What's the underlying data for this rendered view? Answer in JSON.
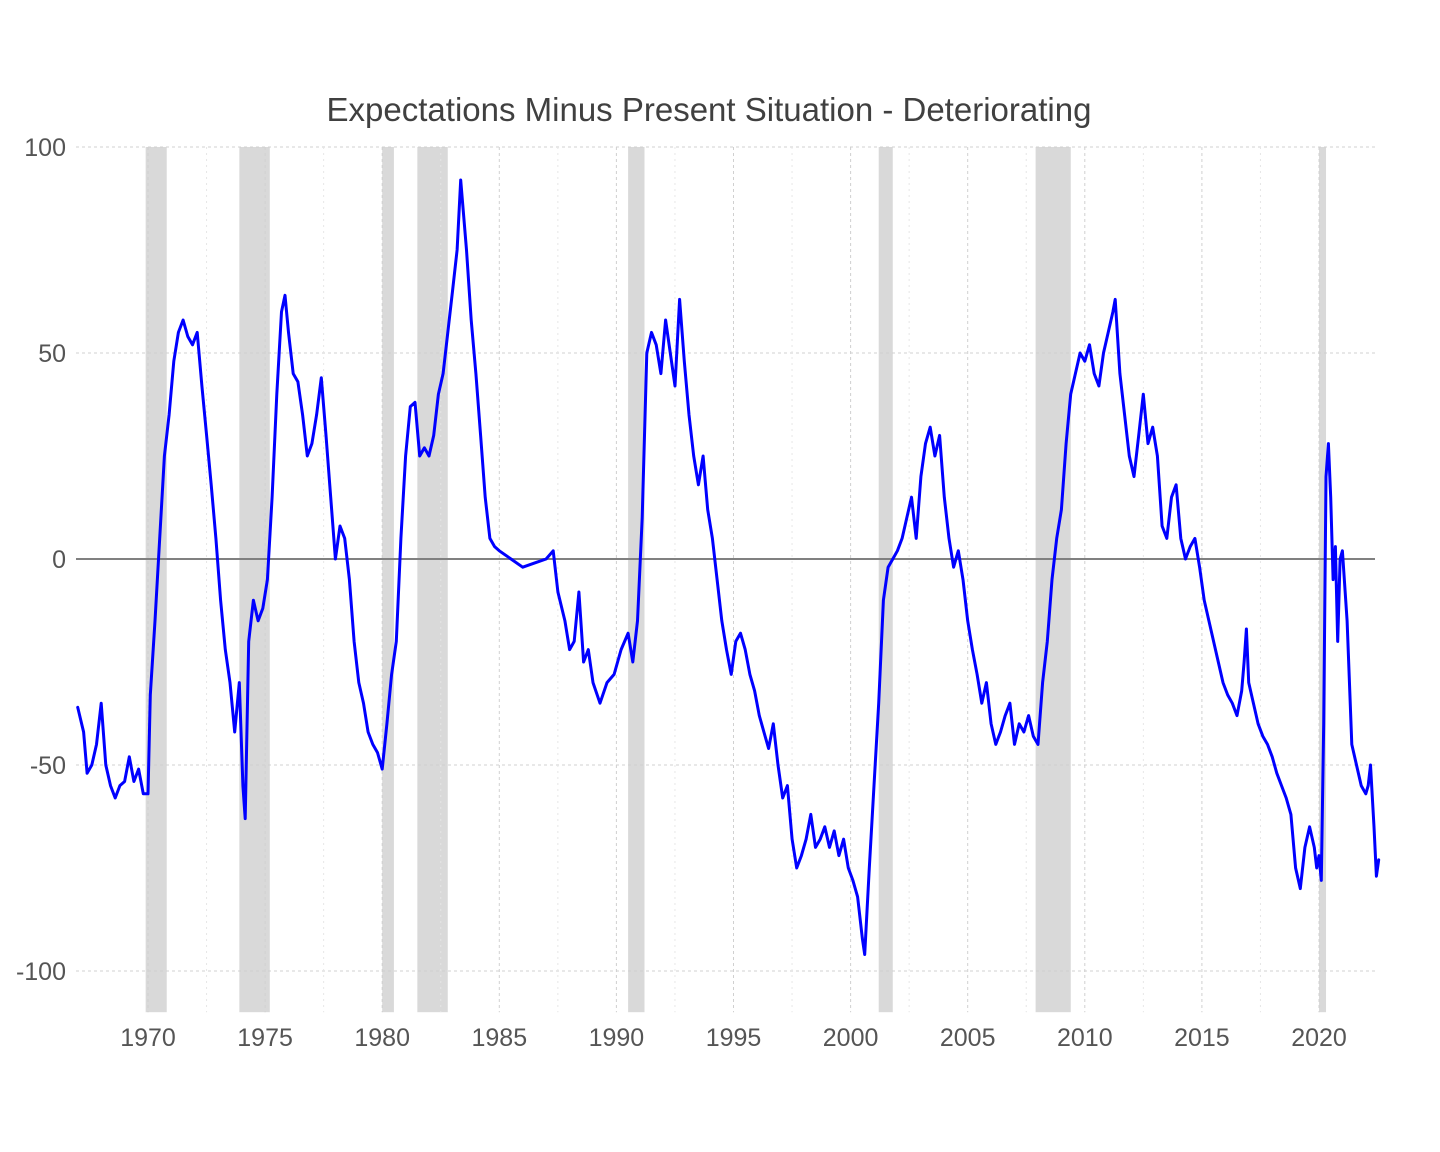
{
  "chart_data": {
    "type": "line",
    "title": "Expectations Minus Present Situation - Deteriorating",
    "xlabel": "",
    "ylabel": "",
    "xlim": [
      1967.0,
      2022.5
    ],
    "ylim": [
      -110,
      100
    ],
    "x_ticks": [
      1970,
      1975,
      1980,
      1985,
      1990,
      1995,
      2000,
      2005,
      2010,
      2015,
      2020
    ],
    "x_tick_labels": [
      "1970",
      "1975",
      "1980",
      "1985",
      "1990",
      "1995",
      "2000",
      "2005",
      "2010",
      "2015",
      "2020"
    ],
    "y_ticks": [
      100,
      50,
      0,
      -50,
      -100
    ],
    "y_tick_labels": [
      "100",
      "50",
      "0",
      "-50",
      "-100"
    ],
    "grid": true,
    "legend": "none",
    "colors": {
      "line": "#0000ff",
      "recession": "#d9d9d9",
      "zero_line": "#808080",
      "grid": "#d0d0d0"
    },
    "recessions": [
      [
        1969.9,
        1970.8
      ],
      [
        1973.9,
        1975.2
      ],
      [
        1980.0,
        1980.5
      ],
      [
        1981.5,
        1982.8
      ],
      [
        1990.5,
        1991.2
      ],
      [
        2001.2,
        2001.8
      ],
      [
        2007.9,
        2009.4
      ],
      [
        2020.0,
        2020.3
      ]
    ],
    "series": [
      {
        "values": [
          [
            1967.0,
            -36
          ],
          [
            1967.25,
            -42
          ],
          [
            1967.4,
            -52
          ],
          [
            1967.6,
            -50
          ],
          [
            1967.8,
            -45
          ],
          [
            1968.0,
            -35
          ],
          [
            1968.2,
            -50
          ],
          [
            1968.4,
            -55
          ],
          [
            1968.6,
            -58
          ],
          [
            1968.8,
            -55
          ],
          [
            1969.0,
            -54
          ],
          [
            1969.2,
            -48
          ],
          [
            1969.4,
            -54
          ],
          [
            1969.6,
            -51
          ],
          [
            1969.8,
            -57
          ],
          [
            1970.0,
            -57
          ],
          [
            1970.1,
            -33
          ],
          [
            1970.3,
            -15
          ],
          [
            1970.5,
            5
          ],
          [
            1970.7,
            25
          ],
          [
            1970.9,
            35
          ],
          [
            1971.1,
            48
          ],
          [
            1971.3,
            55
          ],
          [
            1971.5,
            58
          ],
          [
            1971.7,
            54
          ],
          [
            1971.9,
            52
          ],
          [
            1972.1,
            55
          ],
          [
            1972.3,
            42
          ],
          [
            1972.5,
            30
          ],
          [
            1972.7,
            18
          ],
          [
            1972.9,
            5
          ],
          [
            1973.1,
            -10
          ],
          [
            1973.3,
            -22
          ],
          [
            1973.5,
            -30
          ],
          [
            1973.7,
            -42
          ],
          [
            1973.9,
            -30
          ],
          [
            1974.05,
            -55
          ],
          [
            1974.15,
            -63
          ],
          [
            1974.3,
            -20
          ],
          [
            1974.5,
            -10
          ],
          [
            1974.7,
            -15
          ],
          [
            1974.9,
            -12
          ],
          [
            1975.1,
            -5
          ],
          [
            1975.3,
            15
          ],
          [
            1975.5,
            40
          ],
          [
            1975.7,
            60
          ],
          [
            1975.85,
            64
          ],
          [
            1976.0,
            55
          ],
          [
            1976.2,
            45
          ],
          [
            1976.4,
            43
          ],
          [
            1976.6,
            35
          ],
          [
            1976.8,
            25
          ],
          [
            1977.0,
            28
          ],
          [
            1977.2,
            35
          ],
          [
            1977.4,
            44
          ],
          [
            1977.6,
            30
          ],
          [
            1977.8,
            15
          ],
          [
            1978.0,
            0
          ],
          [
            1978.2,
            8
          ],
          [
            1978.4,
            5
          ],
          [
            1978.6,
            -5
          ],
          [
            1978.8,
            -20
          ],
          [
            1979.0,
            -30
          ],
          [
            1979.2,
            -35
          ],
          [
            1979.4,
            -42
          ],
          [
            1979.6,
            -45
          ],
          [
            1979.8,
            -47
          ],
          [
            1980.0,
            -51
          ],
          [
            1980.2,
            -40
          ],
          [
            1980.4,
            -28
          ],
          [
            1980.6,
            -20
          ],
          [
            1980.8,
            5
          ],
          [
            1981.0,
            25
          ],
          [
            1981.2,
            37
          ],
          [
            1981.4,
            38
          ],
          [
            1981.6,
            25
          ],
          [
            1981.8,
            27
          ],
          [
            1982.0,
            25
          ],
          [
            1982.2,
            30
          ],
          [
            1982.4,
            40
          ],
          [
            1982.6,
            45
          ],
          [
            1982.8,
            55
          ],
          [
            1983.0,
            65
          ],
          [
            1983.2,
            75
          ],
          [
            1983.35,
            92
          ],
          [
            1983.6,
            75
          ],
          [
            1983.8,
            58
          ],
          [
            1984.0,
            45
          ],
          [
            1984.2,
            30
          ],
          [
            1984.4,
            15
          ],
          [
            1984.6,
            5
          ],
          [
            1984.8,
            3
          ],
          [
            1985.0,
            2
          ],
          [
            1985.5,
            0
          ],
          [
            1986.0,
            -2
          ],
          [
            1986.5,
            -1
          ],
          [
            1987.0,
            0
          ],
          [
            1987.3,
            2
          ],
          [
            1987.5,
            -8
          ],
          [
            1987.8,
            -15
          ],
          [
            1988.0,
            -22
          ],
          [
            1988.2,
            -20
          ],
          [
            1988.4,
            -8
          ],
          [
            1988.6,
            -25
          ],
          [
            1988.8,
            -22
          ],
          [
            1989.0,
            -30
          ],
          [
            1989.3,
            -35
          ],
          [
            1989.6,
            -30
          ],
          [
            1989.9,
            -28
          ],
          [
            1990.2,
            -22
          ],
          [
            1990.5,
            -18
          ],
          [
            1990.7,
            -25
          ],
          [
            1990.9,
            -15
          ],
          [
            1991.1,
            10
          ],
          [
            1991.3,
            50
          ],
          [
            1991.5,
            55
          ],
          [
            1991.7,
            52
          ],
          [
            1991.9,
            45
          ],
          [
            1992.1,
            58
          ],
          [
            1992.3,
            50
          ],
          [
            1992.5,
            42
          ],
          [
            1992.7,
            63
          ],
          [
            1992.9,
            48
          ],
          [
            1993.1,
            35
          ],
          [
            1993.3,
            25
          ],
          [
            1993.5,
            18
          ],
          [
            1993.7,
            25
          ],
          [
            1993.9,
            12
          ],
          [
            1994.1,
            5
          ],
          [
            1994.3,
            -5
          ],
          [
            1994.5,
            -15
          ],
          [
            1994.7,
            -22
          ],
          [
            1994.9,
            -28
          ],
          [
            1995.1,
            -20
          ],
          [
            1995.3,
            -18
          ],
          [
            1995.5,
            -22
          ],
          [
            1995.7,
            -28
          ],
          [
            1995.9,
            -32
          ],
          [
            1996.1,
            -38
          ],
          [
            1996.3,
            -42
          ],
          [
            1996.5,
            -46
          ],
          [
            1996.7,
            -40
          ],
          [
            1996.9,
            -50
          ],
          [
            1997.1,
            -58
          ],
          [
            1997.3,
            -55
          ],
          [
            1997.5,
            -68
          ],
          [
            1997.7,
            -75
          ],
          [
            1997.9,
            -72
          ],
          [
            1998.1,
            -68
          ],
          [
            1998.3,
            -62
          ],
          [
            1998.5,
            -70
          ],
          [
            1998.7,
            -68
          ],
          [
            1998.9,
            -65
          ],
          [
            1999.1,
            -70
          ],
          [
            1999.3,
            -66
          ],
          [
            1999.5,
            -72
          ],
          [
            1999.7,
            -68
          ],
          [
            1999.9,
            -75
          ],
          [
            2000.1,
            -78
          ],
          [
            2000.3,
            -82
          ],
          [
            2000.5,
            -92
          ],
          [
            2000.6,
            -96
          ],
          [
            2000.8,
            -75
          ],
          [
            2001.0,
            -55
          ],
          [
            2001.2,
            -35
          ],
          [
            2001.4,
            -10
          ],
          [
            2001.6,
            -2
          ],
          [
            2001.8,
            0
          ],
          [
            2002.0,
            2
          ],
          [
            2002.2,
            5
          ],
          [
            2002.4,
            10
          ],
          [
            2002.6,
            15
          ],
          [
            2002.8,
            5
          ],
          [
            2003.0,
            20
          ],
          [
            2003.2,
            28
          ],
          [
            2003.4,
            32
          ],
          [
            2003.6,
            25
          ],
          [
            2003.8,
            30
          ],
          [
            2004.0,
            15
          ],
          [
            2004.2,
            5
          ],
          [
            2004.4,
            -2
          ],
          [
            2004.6,
            2
          ],
          [
            2004.8,
            -5
          ],
          [
            2005.0,
            -15
          ],
          [
            2005.2,
            -22
          ],
          [
            2005.4,
            -28
          ],
          [
            2005.6,
            -35
          ],
          [
            2005.8,
            -30
          ],
          [
            2006.0,
            -40
          ],
          [
            2006.2,
            -45
          ],
          [
            2006.4,
            -42
          ],
          [
            2006.6,
            -38
          ],
          [
            2006.8,
            -35
          ],
          [
            2007.0,
            -45
          ],
          [
            2007.2,
            -40
          ],
          [
            2007.4,
            -42
          ],
          [
            2007.6,
            -38
          ],
          [
            2007.8,
            -43
          ],
          [
            2008.0,
            -45
          ],
          [
            2008.2,
            -30
          ],
          [
            2008.4,
            -20
          ],
          [
            2008.6,
            -5
          ],
          [
            2008.8,
            5
          ],
          [
            2009.0,
            12
          ],
          [
            2009.2,
            28
          ],
          [
            2009.4,
            40
          ],
          [
            2009.6,
            45
          ],
          [
            2009.8,
            50
          ],
          [
            2010.0,
            48
          ],
          [
            2010.2,
            52
          ],
          [
            2010.4,
            45
          ],
          [
            2010.6,
            42
          ],
          [
            2010.8,
            50
          ],
          [
            2011.0,
            55
          ],
          [
            2011.2,
            60
          ],
          [
            2011.3,
            63
          ],
          [
            2011.5,
            45
          ],
          [
            2011.7,
            35
          ],
          [
            2011.9,
            25
          ],
          [
            2012.1,
            20
          ],
          [
            2012.3,
            30
          ],
          [
            2012.5,
            40
          ],
          [
            2012.7,
            28
          ],
          [
            2012.9,
            32
          ],
          [
            2013.1,
            25
          ],
          [
            2013.3,
            8
          ],
          [
            2013.5,
            5
          ],
          [
            2013.7,
            15
          ],
          [
            2013.9,
            18
          ],
          [
            2014.1,
            5
          ],
          [
            2014.3,
            0
          ],
          [
            2014.5,
            3
          ],
          [
            2014.7,
            5
          ],
          [
            2014.9,
            -2
          ],
          [
            2015.1,
            -10
          ],
          [
            2015.3,
            -15
          ],
          [
            2015.5,
            -20
          ],
          [
            2015.7,
            -25
          ],
          [
            2015.9,
            -30
          ],
          [
            2016.1,
            -33
          ],
          [
            2016.3,
            -35
          ],
          [
            2016.5,
            -38
          ],
          [
            2016.7,
            -32
          ],
          [
            2016.8,
            -25
          ],
          [
            2016.9,
            -17
          ],
          [
            2017.0,
            -30
          ],
          [
            2017.2,
            -35
          ],
          [
            2017.4,
            -40
          ],
          [
            2017.6,
            -43
          ],
          [
            2017.8,
            -45
          ],
          [
            2018.0,
            -48
          ],
          [
            2018.2,
            -52
          ],
          [
            2018.4,
            -55
          ],
          [
            2018.6,
            -58
          ],
          [
            2018.8,
            -62
          ],
          [
            2019.0,
            -75
          ],
          [
            2019.2,
            -80
          ],
          [
            2019.4,
            -70
          ],
          [
            2019.6,
            -65
          ],
          [
            2019.8,
            -70
          ],
          [
            2019.9,
            -75
          ],
          [
            2020.0,
            -72
          ],
          [
            2020.1,
            -78
          ],
          [
            2020.2,
            -40
          ],
          [
            2020.3,
            20
          ],
          [
            2020.4,
            28
          ],
          [
            2020.5,
            15
          ],
          [
            2020.6,
            -5
          ],
          [
            2020.7,
            3
          ],
          [
            2020.8,
            -20
          ],
          [
            2020.9,
            0
          ],
          [
            2021.0,
            2
          ],
          [
            2021.2,
            -15
          ],
          [
            2021.4,
            -45
          ],
          [
            2021.6,
            -50
          ],
          [
            2021.8,
            -55
          ],
          [
            2022.0,
            -57
          ],
          [
            2022.1,
            -55
          ],
          [
            2022.2,
            -50
          ],
          [
            2022.35,
            -65
          ],
          [
            2022.45,
            -77
          ],
          [
            2022.55,
            -73
          ]
        ]
      }
    ]
  }
}
